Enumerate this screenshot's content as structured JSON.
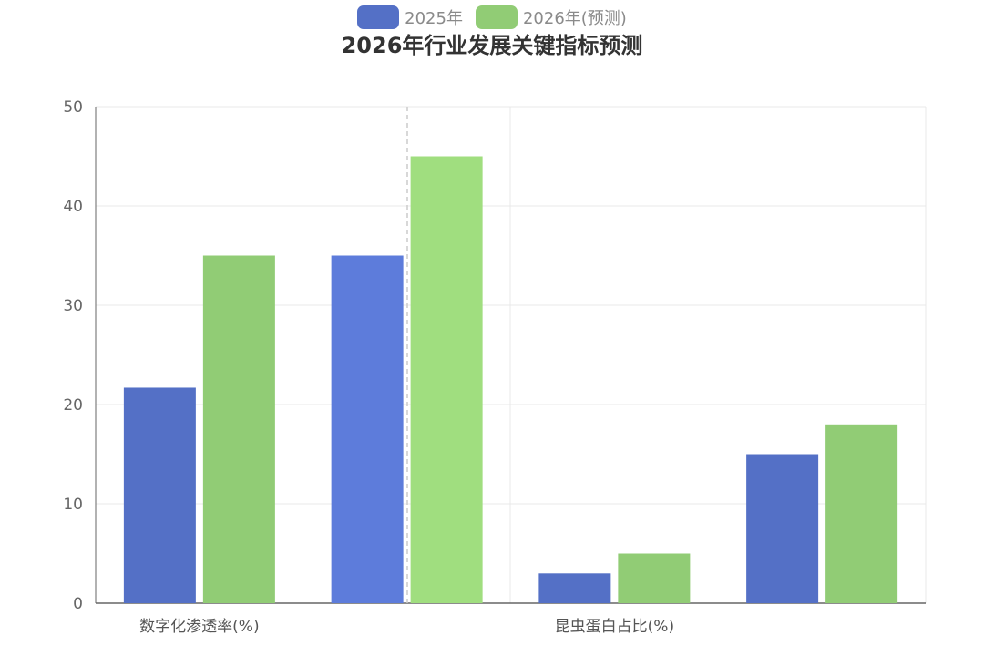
{
  "chart_data": {
    "type": "bar",
    "title": "2026年行业发展关键指标预测",
    "categories": [
      "数字化渗透率(%)",
      "",
      "昆虫蛋白占比(%)",
      ""
    ],
    "series": [
      {
        "name": "2025年",
        "color": "#5470c6",
        "values": [
          21.7,
          35,
          3,
          15
        ]
      },
      {
        "name": "2026年(预测)",
        "color": "#91cc75",
        "values": [
          35,
          45,
          5,
          18
        ]
      }
    ],
    "ylim": [
      0,
      50
    ],
    "yticks": [
      0,
      10,
      20,
      30,
      40,
      50
    ],
    "grid": true,
    "legend_position": "top-center"
  }
}
